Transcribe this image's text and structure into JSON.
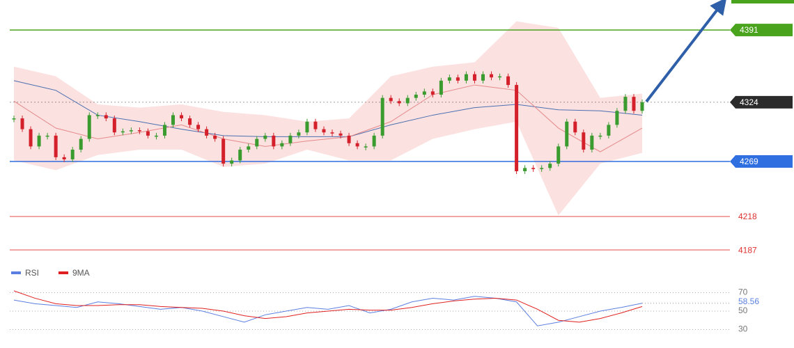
{
  "chart_data": [
    {
      "type": "candlestick",
      "values": [
        4309,
        4299,
        4283,
        4293,
        4293,
        4273,
        4271,
        4280,
        4290,
        4312,
        4312,
        4309,
        4296,
        4297,
        4298,
        4297,
        4293,
        4293,
        4303,
        4312,
        4309,
        4303,
        4299,
        4293,
        4290,
        4267,
        4270,
        4280,
        4283,
        4290,
        4293,
        4283,
        4286,
        4293,
        4296,
        4306,
        4299,
        4296,
        4295,
        4293,
        4286,
        4283,
        4283,
        4293,
        4328,
        4325,
        4323,
        4328,
        4331,
        4334,
        4331,
        4344,
        4347,
        4344,
        4350,
        4344,
        4350,
        4347,
        4348,
        4340,
        4260,
        4263,
        4262,
        4263,
        4267,
        4283,
        4306,
        4296,
        4280,
        4293,
        4293,
        4303,
        4316,
        4329,
        4316,
        4324
      ],
      "up_color": "#3a9b2f",
      "down_color": "#d3202a",
      "ylim": [
        4173.5,
        4418.8
      ],
      "series": [
        {
          "color": "#4a6fb0",
          "values": [
            4344,
            4335,
            4312,
            4306,
            4299,
            4293,
            4292,
            4292,
            4292,
            4303,
            4312,
            4319,
            4322,
            4317,
            4316,
            4312
          ]
        },
        {
          "color": "#e58a8a",
          "values": [
            4325,
            4300,
            4290,
            4296,
            4303,
            4290,
            4283,
            4288,
            4292,
            4306,
            4331,
            4340,
            4335,
            4300,
            4278,
            4300
          ]
        }
      ],
      "band": {
        "color": "#fbd9d9",
        "upper": [
          4357,
          4348,
          4322,
          4319,
          4322,
          4315,
          4312,
          4306,
          4309,
          4348,
          4357,
          4361,
          4399,
          4393,
          4328,
          4332
        ],
        "lower": [
          4270,
          4261,
          4275,
          4280,
          4280,
          4264,
          4267,
          4280,
          4270,
          4270,
          4290,
          4299,
          4306,
          4219,
          4267,
          4277
        ]
      },
      "levels": [
        {
          "value": 4391,
          "color": "#4aa31c",
          "style": "box"
        },
        {
          "value": 4324,
          "color": "#2b2b2b",
          "style": "box"
        },
        {
          "value": 4269,
          "color": "#2f6fe0",
          "style": "box"
        },
        {
          "value": 4218,
          "color": "#e03030",
          "style": "text"
        },
        {
          "value": 4187,
          "color": "#e03030",
          "style": "text"
        }
      ]
    },
    {
      "type": "line",
      "ylim": [
        10,
        90
      ],
      "yticks": [
        70,
        50,
        30
      ],
      "legend": "top-left",
      "series": [
        {
          "name": "RSI",
          "color": "#5b7fe0",
          "values": [
            62,
            58,
            56,
            54,
            60,
            58,
            55,
            52,
            54,
            50,
            44,
            38,
            46,
            50,
            54,
            52,
            56,
            48,
            52,
            60,
            64,
            62,
            66,
            64,
            60,
            34,
            38,
            44,
            50,
            54,
            58.56
          ]
        },
        {
          "name": "9MA",
          "color": "#e02020",
          "values": [
            72,
            64,
            58,
            56,
            56,
            57,
            57,
            55,
            54,
            53,
            50,
            45,
            42,
            44,
            48,
            50,
            52,
            51,
            51,
            54,
            58,
            61,
            63,
            64,
            62,
            52,
            40,
            38,
            42,
            48,
            55
          ]
        }
      ]
    }
  ]
}
